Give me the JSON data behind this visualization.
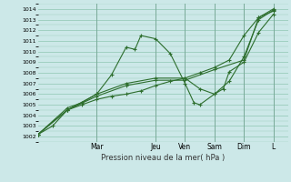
{
  "title": "Pression niveau de la mer( hPa )",
  "bg_color": "#cce8e8",
  "grid_color": "#99ccbb",
  "line_color": "#2d6e2d",
  "ylim": [
    1001.5,
    1014.5
  ],
  "yticks": [
    1002,
    1003,
    1004,
    1005,
    1006,
    1007,
    1008,
    1009,
    1010,
    1011,
    1012,
    1013,
    1014
  ],
  "day_labels": [
    "Mar",
    "Jeu",
    "Ven",
    "Sam",
    "Dim",
    "L"
  ],
  "day_positions": [
    2,
    4,
    5,
    6,
    7,
    8
  ],
  "xlim": [
    0,
    8.5
  ],
  "series": [
    [
      [
        0,
        0.5,
        1.0,
        1.5,
        2.0,
        2.5,
        3.0,
        3.5,
        4.0,
        4.5,
        5.0,
        5.5,
        6.0,
        6.5,
        7.0,
        7.5,
        8.0
      ],
      [
        1002.2,
        1003.0,
        1004.5,
        1005.0,
        1005.5,
        1005.8,
        1006.0,
        1006.3,
        1006.8,
        1007.2,
        1007.5,
        1008.0,
        1008.5,
        1009.2,
        1011.5,
        1013.2,
        1013.8
      ]
    ],
    [
      [
        0,
        1.0,
        1.5,
        2.0,
        2.5,
        3.0,
        3.3,
        3.5,
        4.0,
        4.5,
        5.0,
        5.3,
        5.5,
        6.0,
        6.3,
        6.5,
        7.0,
        7.5,
        8.0
      ],
      [
        1002.2,
        1004.7,
        1005.2,
        1006.0,
        1007.8,
        1010.4,
        1010.2,
        1011.5,
        1011.2,
        1009.8,
        1007.0,
        1005.2,
        1005.0,
        1006.0,
        1006.5,
        1008.1,
        1009.0,
        1011.8,
        1013.5
      ]
    ],
    [
      [
        0,
        1.0,
        2.0,
        3.0,
        4.0,
        5.0,
        5.5,
        6.0,
        6.5,
        7.0,
        7.5,
        8.0
      ],
      [
        1002.2,
        1004.5,
        1006.0,
        1007.0,
        1007.5,
        1007.5,
        1006.5,
        1006.0,
        1007.2,
        1009.5,
        1013.0,
        1013.9
      ]
    ],
    [
      [
        0,
        1.0,
        2.0,
        3.0,
        4.0,
        5.0,
        6.0,
        7.0,
        7.5,
        8.0
      ],
      [
        1002.2,
        1004.5,
        1005.8,
        1006.8,
        1007.3,
        1007.3,
        1008.3,
        1009.2,
        1013.2,
        1014.0
      ]
    ]
  ]
}
